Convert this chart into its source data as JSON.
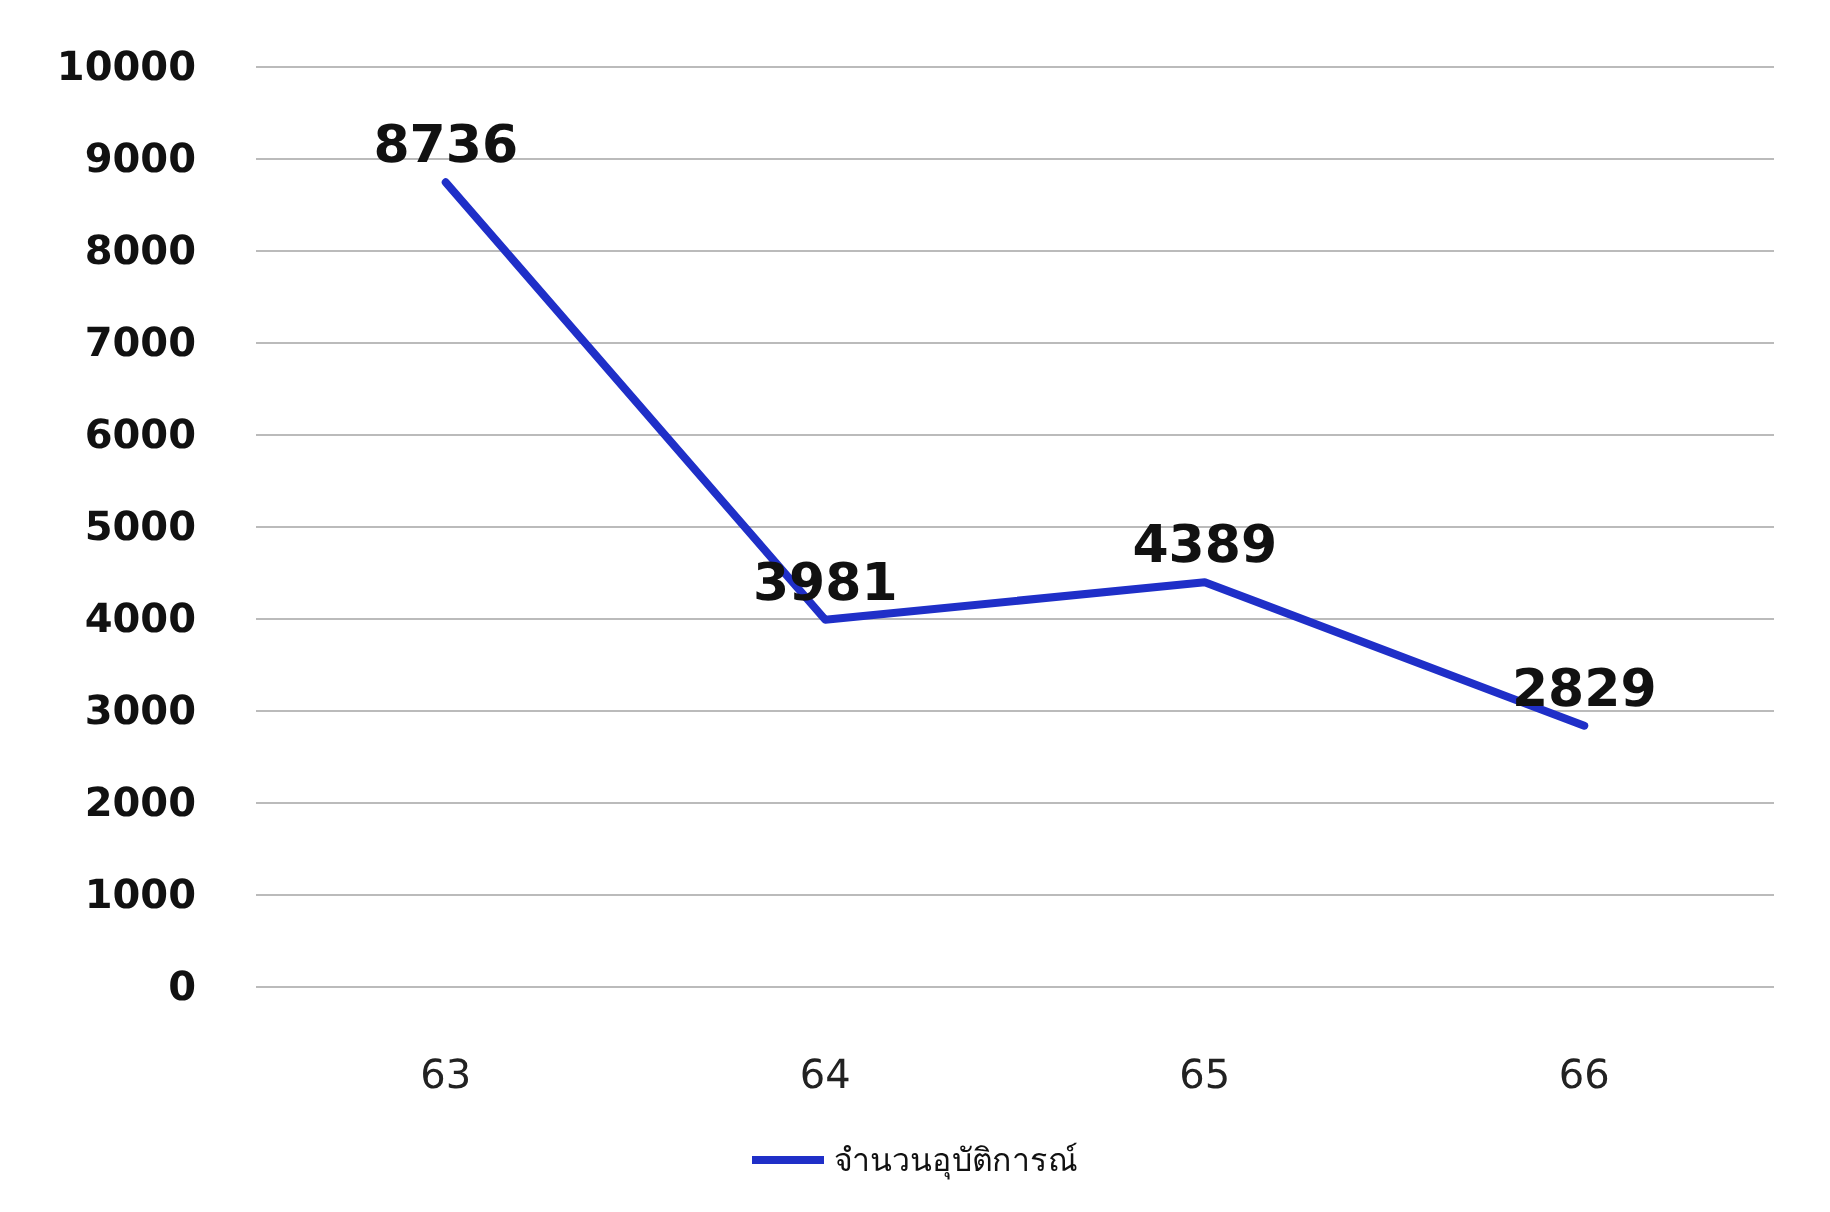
{
  "chart_data": {
    "type": "line",
    "categories": [
      "63",
      "64",
      "65",
      "66"
    ],
    "series": [
      {
        "name": "จำนวนอุบัติการณ์",
        "color": "#1f2fc8",
        "values": [
          8736,
          3981,
          4389,
          2829
        ]
      }
    ],
    "ylim": [
      0,
      10000
    ],
    "yticks": [
      0,
      1000,
      2000,
      3000,
      4000,
      5000,
      6000,
      7000,
      8000,
      9000,
      10000
    ],
    "grid": "y",
    "legend": "bottom",
    "data_labels": true,
    "marker": "none",
    "line_style": "solid"
  }
}
